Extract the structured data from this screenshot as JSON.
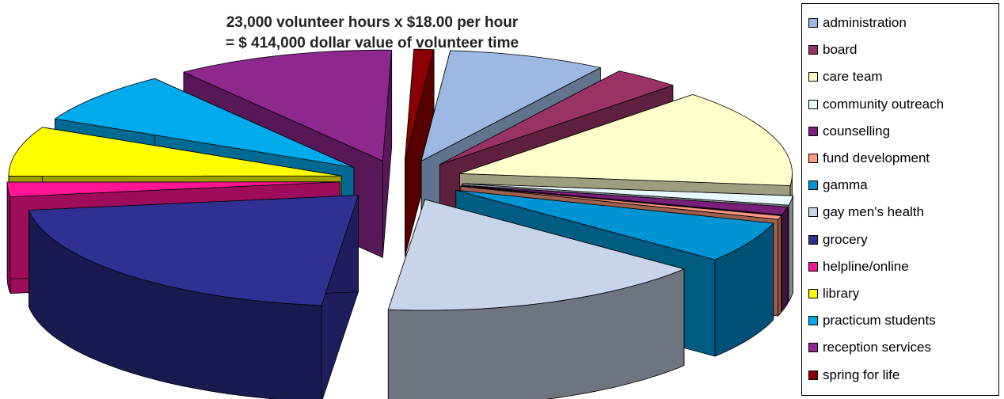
{
  "chart_data": {
    "type": "pie",
    "title_lines": [
      "23,000 volunteer hours x $18.00 per hour",
      "= $ 414,000 dollar value of volunteer time"
    ],
    "categories": [
      "administration",
      "board",
      "care team",
      "community outreach",
      "counselling",
      "fund development",
      "gamma",
      "gay men's health",
      "grocery",
      "helpline/online",
      "library",
      "practicum students",
      "reception services",
      "spring for life"
    ],
    "values": [
      7.2,
      3.1,
      13.5,
      1.3,
      1.1,
      0.5,
      5.6,
      15.0,
      19.8,
      2.0,
      6.8,
      7.1,
      10.0,
      0.9
    ],
    "colors": [
      "#9DB9E3",
      "#993366",
      "#FFFFCC",
      "#E8F8FF",
      "#7A1F7A",
      "#FF9980",
      "#0094D4",
      "#C8D4EA",
      "#2E3192",
      "#FF1493",
      "#FFFF00",
      "#00ABEB",
      "#8E278E",
      "#8B0000"
    ],
    "legend_position": "right"
  }
}
